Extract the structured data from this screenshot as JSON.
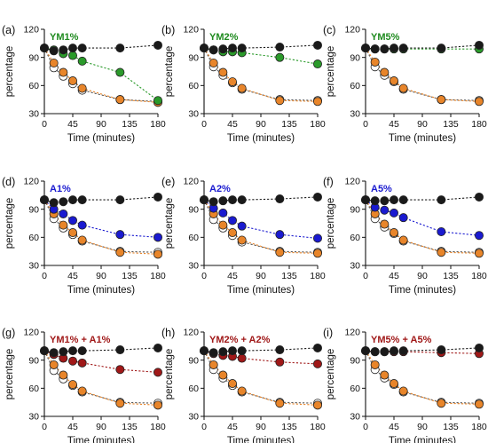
{
  "figure": {
    "point_colors": {
      "black": "#1a1a1a",
      "white": "#ffffff",
      "orange": "#e8852a"
    },
    "title_colors": {
      "green": "#1e8a1e",
      "blue": "#1a1ad0",
      "red": "#a01818"
    }
  },
  "chart_data": [
    {
      "type": "scatter",
      "panel_label": "(a)",
      "title": "YM1%",
      "title_color": "#1e8a1e",
      "xlabel": "Time (minutes)",
      "ylabel": "percentage",
      "xlim": [
        0,
        180
      ],
      "ylim": [
        30,
        120
      ],
      "xticks": [
        "0",
        "45",
        "90",
        "135",
        "180"
      ],
      "yticks": [
        "30",
        "60",
        "90",
        "120"
      ],
      "x": [
        0,
        15,
        30,
        45,
        60,
        120,
        180
      ],
      "series": [
        {
          "color": "#1a1a1a",
          "line_color": "#1a1a1a",
          "values": [
            100,
            97,
            98,
            100,
            100,
            100,
            103
          ]
        },
        {
          "color": "#2a9a2a",
          "line_color": "#2a9a2a",
          "values": [
            100,
            98,
            94,
            92,
            86,
            74,
            44
          ]
        },
        {
          "color": "#ffffff",
          "line_color": "#555555",
          "values": [
            100,
            79,
            70,
            62,
            55,
            45,
            43
          ]
        },
        {
          "color": "#e8852a",
          "line_color": "#e8852a",
          "values": [
            100,
            84,
            74,
            65,
            57,
            45,
            42
          ]
        }
      ]
    },
    {
      "type": "scatter",
      "panel_label": "(b)",
      "title": "YM2%",
      "title_color": "#1e8a1e",
      "xlabel": "Time (minutes)",
      "ylabel": "percentage",
      "xlim": [
        0,
        180
      ],
      "ylim": [
        30,
        120
      ],
      "xticks": [
        "0",
        "45",
        "90",
        "135",
        "180"
      ],
      "yticks": [
        "30",
        "60",
        "90",
        "120"
      ],
      "x": [
        0,
        15,
        30,
        45,
        60,
        120,
        180
      ],
      "series": [
        {
          "color": "#1a1a1a",
          "line_color": "#1a1a1a",
          "values": [
            100,
            98,
            99,
            100,
            100,
            101,
            103
          ]
        },
        {
          "color": "#2a9a2a",
          "line_color": "#2a9a2a",
          "values": [
            100,
            98,
            96,
            96,
            95,
            90,
            83
          ]
        },
        {
          "color": "#ffffff",
          "line_color": "#555555",
          "values": [
            100,
            80,
            71,
            63,
            56,
            45,
            44
          ]
        },
        {
          "color": "#e8852a",
          "line_color": "#e8852a",
          "values": [
            100,
            84,
            74,
            64,
            57,
            44,
            43
          ]
        }
      ]
    },
    {
      "type": "scatter",
      "panel_label": "(c)",
      "title": "YM5%",
      "title_color": "#1e8a1e",
      "xlabel": "Time (minutes)",
      "ylabel": "percentage",
      "xlim": [
        0,
        180
      ],
      "ylim": [
        30,
        120
      ],
      "xticks": [
        "0",
        "45",
        "90",
        "135",
        "180"
      ],
      "yticks": [
        "30",
        "60",
        "90",
        "120"
      ],
      "x": [
        0,
        15,
        30,
        45,
        60,
        120,
        180
      ],
      "series": [
        {
          "color": "#1a1a1a",
          "line_color": "#1a1a1a",
          "values": [
            100,
            99,
            99,
            100,
            100,
            100,
            103
          ]
        },
        {
          "color": "#2a9a2a",
          "line_color": "#2a9a2a",
          "values": [
            100,
            99,
            99,
            99,
            99,
            99,
            99
          ]
        },
        {
          "color": "#ffffff",
          "line_color": "#555555",
          "values": [
            100,
            80,
            71,
            64,
            56,
            45,
            44
          ]
        },
        {
          "color": "#e8852a",
          "line_color": "#e8852a",
          "values": [
            100,
            85,
            74,
            65,
            57,
            45,
            43
          ]
        }
      ]
    },
    {
      "type": "scatter",
      "panel_label": "(d)",
      "title": "A1%",
      "title_color": "#1a1ad0",
      "xlabel": "Time (minutes)",
      "ylabel": "percentage",
      "xlim": [
        0,
        180
      ],
      "ylim": [
        30,
        120
      ],
      "xticks": [
        "0",
        "45",
        "90",
        "135",
        "180"
      ],
      "yticks": [
        "30",
        "60",
        "90",
        "120"
      ],
      "x": [
        0,
        15,
        30,
        45,
        60,
        120,
        180
      ],
      "series": [
        {
          "color": "#1a1a1a",
          "line_color": "#1a1a1a",
          "values": [
            100,
            97,
            98,
            100,
            100,
            100,
            103
          ]
        },
        {
          "color": "#1a1ad0",
          "line_color": "#1a1ad0",
          "values": [
            100,
            90,
            85,
            78,
            73,
            63,
            60
          ]
        },
        {
          "color": "#ffffff",
          "line_color": "#555555",
          "values": [
            100,
            80,
            70,
            63,
            56,
            45,
            44
          ]
        },
        {
          "color": "#e8852a",
          "line_color": "#e8852a",
          "values": [
            100,
            85,
            73,
            65,
            57,
            44,
            42
          ]
        }
      ]
    },
    {
      "type": "scatter",
      "panel_label": "(e)",
      "title": "A2%",
      "title_color": "#1a1ad0",
      "xlabel": "Time (minutes)",
      "ylabel": "percentage",
      "xlim": [
        0,
        180
      ],
      "ylim": [
        30,
        120
      ],
      "xticks": [
        "0",
        "45",
        "90",
        "135",
        "180"
      ],
      "yticks": [
        "30",
        "60",
        "90",
        "120"
      ],
      "x": [
        0,
        15,
        30,
        45,
        60,
        120,
        180
      ],
      "series": [
        {
          "color": "#1a1a1a",
          "line_color": "#1a1a1a",
          "values": [
            100,
            98,
            99,
            100,
            100,
            101,
            103
          ]
        },
        {
          "color": "#1a1ad0",
          "line_color": "#1a1ad0",
          "values": [
            100,
            91,
            86,
            78,
            72,
            63,
            59
          ]
        },
        {
          "color": "#ffffff",
          "line_color": "#555555",
          "values": [
            100,
            79,
            70,
            62,
            55,
            45,
            44
          ]
        },
        {
          "color": "#e8852a",
          "line_color": "#e8852a",
          "values": [
            100,
            85,
            73,
            65,
            57,
            44,
            43
          ]
        }
      ]
    },
    {
      "type": "scatter",
      "panel_label": "(f)",
      "title": "A5%",
      "title_color": "#1a1ad0",
      "xlabel": "Time (minutes)",
      "ylabel": "percentage",
      "xlim": [
        0,
        180
      ],
      "ylim": [
        30,
        120
      ],
      "xticks": [
        "0",
        "45",
        "90",
        "135",
        "180"
      ],
      "yticks": [
        "30",
        "60",
        "90",
        "120"
      ],
      "x": [
        0,
        15,
        30,
        45,
        60,
        120,
        180
      ],
      "series": [
        {
          "color": "#1a1a1a",
          "line_color": "#1a1a1a",
          "values": [
            100,
            99,
            99,
            100,
            100,
            100,
            103
          ]
        },
        {
          "color": "#1a1ad0",
          "line_color": "#1a1ad0",
          "values": [
            100,
            92,
            89,
            86,
            81,
            66,
            62
          ]
        },
        {
          "color": "#ffffff",
          "line_color": "#555555",
          "values": [
            100,
            80,
            71,
            64,
            56,
            45,
            44
          ]
        },
        {
          "color": "#e8852a",
          "line_color": "#e8852a",
          "values": [
            100,
            85,
            74,
            65,
            57,
            44,
            43
          ]
        }
      ]
    },
    {
      "type": "scatter",
      "panel_label": "(g)",
      "title": "YM1% + A1%",
      "title_color": "#a01818",
      "xlabel": "Time (minutes)",
      "ylabel": "percentage",
      "xlim": [
        0,
        180
      ],
      "ylim": [
        30,
        120
      ],
      "xticks": [
        "0",
        "45",
        "90",
        "135",
        "180"
      ],
      "yticks": [
        "30",
        "60",
        "90",
        "120"
      ],
      "x": [
        0,
        15,
        30,
        45,
        60,
        120,
        180
      ],
      "series": [
        {
          "color": "#1a1a1a",
          "line_color": "#1a1a1a",
          "values": [
            100,
            98,
            99,
            100,
            100,
            101,
            103
          ]
        },
        {
          "color": "#a01818",
          "line_color": "#a01818",
          "values": [
            100,
            96,
            92,
            89,
            87,
            80,
            77
          ]
        },
        {
          "color": "#ffffff",
          "line_color": "#555555",
          "values": [
            100,
            79,
            70,
            63,
            56,
            45,
            44
          ]
        },
        {
          "color": "#e8852a",
          "line_color": "#e8852a",
          "values": [
            100,
            85,
            74,
            64,
            57,
            44,
            42
          ]
        }
      ]
    },
    {
      "type": "scatter",
      "panel_label": "(h)",
      "title": "YM2% + A2%",
      "title_color": "#a01818",
      "xlabel": "Time (minutes)",
      "ylabel": "percentage",
      "xlim": [
        0,
        180
      ],
      "ylim": [
        30,
        120
      ],
      "xticks": [
        "0",
        "45",
        "90",
        "135",
        "180"
      ],
      "yticks": [
        "30",
        "60",
        "90",
        "120"
      ],
      "x": [
        0,
        15,
        30,
        45,
        60,
        120,
        180
      ],
      "series": [
        {
          "color": "#1a1a1a",
          "line_color": "#1a1a1a",
          "values": [
            100,
            98,
            99,
            100,
            100,
            101,
            103
          ]
        },
        {
          "color": "#a01818",
          "line_color": "#a01818",
          "values": [
            100,
            97,
            95,
            94,
            92,
            88,
            86
          ]
        },
        {
          "color": "#ffffff",
          "line_color": "#555555",
          "values": [
            100,
            80,
            71,
            63,
            56,
            45,
            44
          ]
        },
        {
          "color": "#e8852a",
          "line_color": "#e8852a",
          "values": [
            100,
            85,
            74,
            65,
            57,
            44,
            42
          ]
        }
      ]
    },
    {
      "type": "scatter",
      "panel_label": "(i)",
      "title": "YM5% + A5%",
      "title_color": "#a01818",
      "xlabel": "Time (minutes)",
      "ylabel": "percentage",
      "xlim": [
        0,
        180
      ],
      "ylim": [
        30,
        120
      ],
      "xticks": [
        "0",
        "45",
        "90",
        "135",
        "180"
      ],
      "yticks": [
        "30",
        "60",
        "90",
        "120"
      ],
      "x": [
        0,
        15,
        30,
        45,
        60,
        120,
        180
      ],
      "series": [
        {
          "color": "#1a1a1a",
          "line_color": "#1a1a1a",
          "values": [
            100,
            99,
            99,
            100,
            100,
            101,
            103
          ]
        },
        {
          "color": "#a01818",
          "line_color": "#a01818",
          "values": [
            100,
            99,
            99,
            99,
            99,
            98,
            97
          ]
        },
        {
          "color": "#ffffff",
          "line_color": "#555555",
          "values": [
            100,
            80,
            71,
            64,
            56,
            45,
            44
          ]
        },
        {
          "color": "#e8852a",
          "line_color": "#e8852a",
          "values": [
            100,
            85,
            74,
            65,
            57,
            44,
            43
          ]
        }
      ]
    }
  ]
}
